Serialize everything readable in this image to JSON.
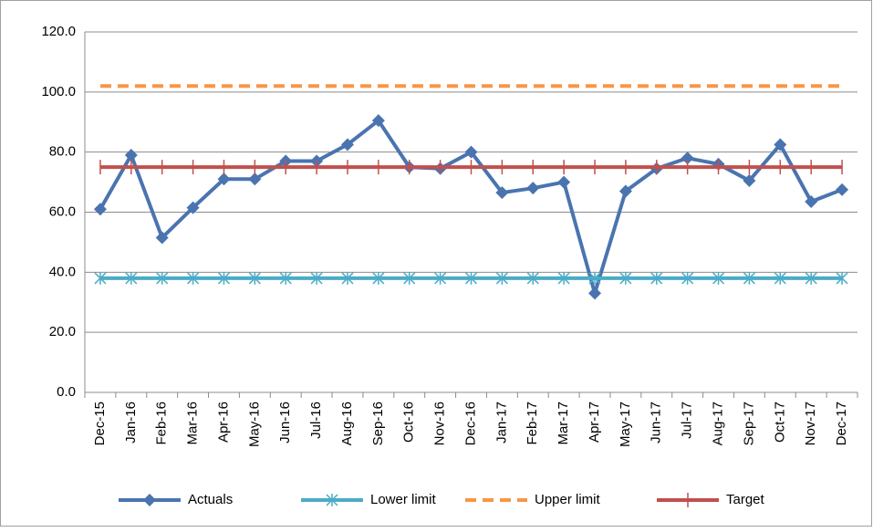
{
  "chart_data": {
    "type": "line",
    "categories": [
      "Dec-15",
      "Jan-16",
      "Feb-16",
      "Mar-16",
      "Apr-16",
      "May-16",
      "Jun-16",
      "Jul-16",
      "Aug-16",
      "Sep-16",
      "Oct-16",
      "Nov-16",
      "Dec-16",
      "Jan-17",
      "Feb-17",
      "Mar-17",
      "Apr-17",
      "May-17",
      "Jun-17",
      "Jul-17",
      "Aug-17",
      "Sep-17",
      "Oct-17",
      "Nov-17",
      "Dec-17"
    ],
    "series": [
      {
        "name": "Actuals",
        "color": "#4a74b0",
        "marker": "diamond",
        "dash": false,
        "values": [
          61,
          79,
          51.5,
          61.5,
          71,
          71,
          77,
          77,
          82.5,
          90.5,
          75,
          74.5,
          80,
          66.5,
          68,
          70,
          33,
          67,
          74.5,
          78,
          76,
          70.5,
          82.5,
          63.5,
          67.5
        ]
      },
      {
        "name": "Lower limit",
        "color": "#4bacc6",
        "marker": "asterisk",
        "dash": false,
        "values": [
          38,
          38,
          38,
          38,
          38,
          38,
          38,
          38,
          38,
          38,
          38,
          38,
          38,
          38,
          38,
          38,
          38,
          38,
          38,
          38,
          38,
          38,
          38,
          38,
          38
        ]
      },
      {
        "name": "Upper limit",
        "color": "#f79646",
        "marker": "none",
        "dash": true,
        "values": [
          102,
          102,
          102,
          102,
          102,
          102,
          102,
          102,
          102,
          102,
          102,
          102,
          102,
          102,
          102,
          102,
          102,
          102,
          102,
          102,
          102,
          102,
          102,
          102,
          102
        ]
      },
      {
        "name": "Target",
        "color": "#c0504d",
        "marker": "tick",
        "dash": false,
        "values": [
          75,
          75,
          75,
          75,
          75,
          75,
          75,
          75,
          75,
          75,
          75,
          75,
          75,
          75,
          75,
          75,
          75,
          75,
          75,
          75,
          75,
          75,
          75,
          75,
          75
        ]
      }
    ],
    "ylim": [
      0,
      120
    ],
    "yticks": [
      {
        "value": 0,
        "label": "0.0"
      },
      {
        "value": 20,
        "label": "20.0"
      },
      {
        "value": 40,
        "label": "40.0"
      },
      {
        "value": 60,
        "label": "60.0"
      },
      {
        "value": 80,
        "label": "80.0"
      },
      {
        "value": 100,
        "label": "100.0"
      },
      {
        "value": 120,
        "label": "120.0"
      }
    ],
    "grid": true,
    "legend": "bottom"
  }
}
